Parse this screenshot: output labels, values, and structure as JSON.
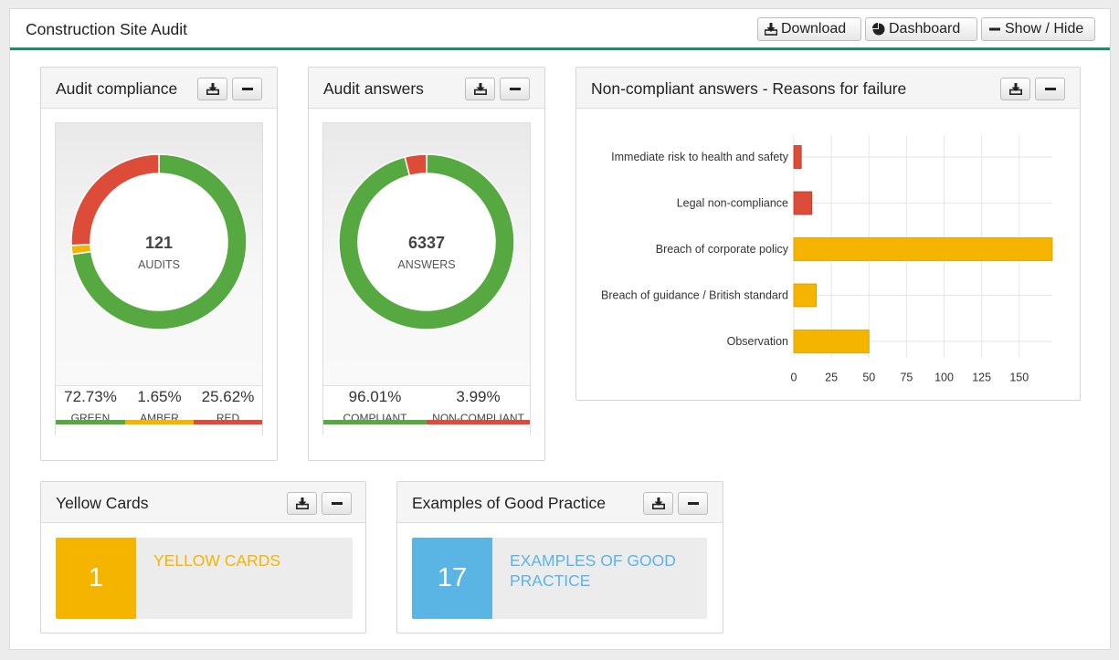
{
  "page": {
    "title": "Construction Site Audit",
    "buttons": {
      "download": "Download",
      "dashboard": "Dashboard",
      "show_hide": "Show / Hide"
    }
  },
  "colors": {
    "green": "#55a940",
    "amber": "#f5b400",
    "red": "#dd4b39",
    "blue": "#5bb5e4",
    "accent": "#1e8a6e"
  },
  "audit_compliance": {
    "title": "Audit compliance",
    "center_value": "121",
    "center_label": "AUDITS",
    "segments": [
      {
        "pct_text": "72.73%",
        "label": "GREEN",
        "value": 72.73,
        "color": "#55a940"
      },
      {
        "pct_text": "1.65%",
        "label": "AMBER",
        "value": 1.65,
        "color": "#f5b400"
      },
      {
        "pct_text": "25.62%",
        "label": "RED",
        "value": 25.62,
        "color": "#dd4b39"
      }
    ]
  },
  "audit_answers": {
    "title": "Audit answers",
    "center_value": "6337",
    "center_label": "ANSWERS",
    "segments": [
      {
        "pct_text": "96.01%",
        "label": "COMPLIANT",
        "value": 96.01,
        "color": "#55a940"
      },
      {
        "pct_text": "3.99%",
        "label": "NON-COMPLIANT",
        "value": 3.99,
        "color": "#dd4b39"
      }
    ]
  },
  "noncompliant": {
    "title": "Non-compliant answers - Reasons for failure"
  },
  "chart_data": {
    "type": "bar",
    "orientation": "horizontal",
    "categories": [
      "Immediate risk to health and safety",
      "Legal non-compliance",
      "Breach of corporate policy",
      "Breach of guidance / British standard",
      "Observation"
    ],
    "values": [
      5,
      12,
      172,
      15,
      50
    ],
    "colors": [
      "#dd4b39",
      "#dd4b39",
      "#f5b400",
      "#f5b400",
      "#f5b400"
    ],
    "xlim": [
      0,
      172
    ],
    "xticks": [
      0,
      25,
      50,
      75,
      100,
      125,
      150
    ],
    "grid": true
  },
  "yellow_cards": {
    "title": "Yellow Cards",
    "count": "1",
    "label": "YELLOW CARDS"
  },
  "good_practice": {
    "title": "Examples of Good Practice",
    "count": "17",
    "label": "EXAMPLES OF GOOD PRACTICE"
  }
}
